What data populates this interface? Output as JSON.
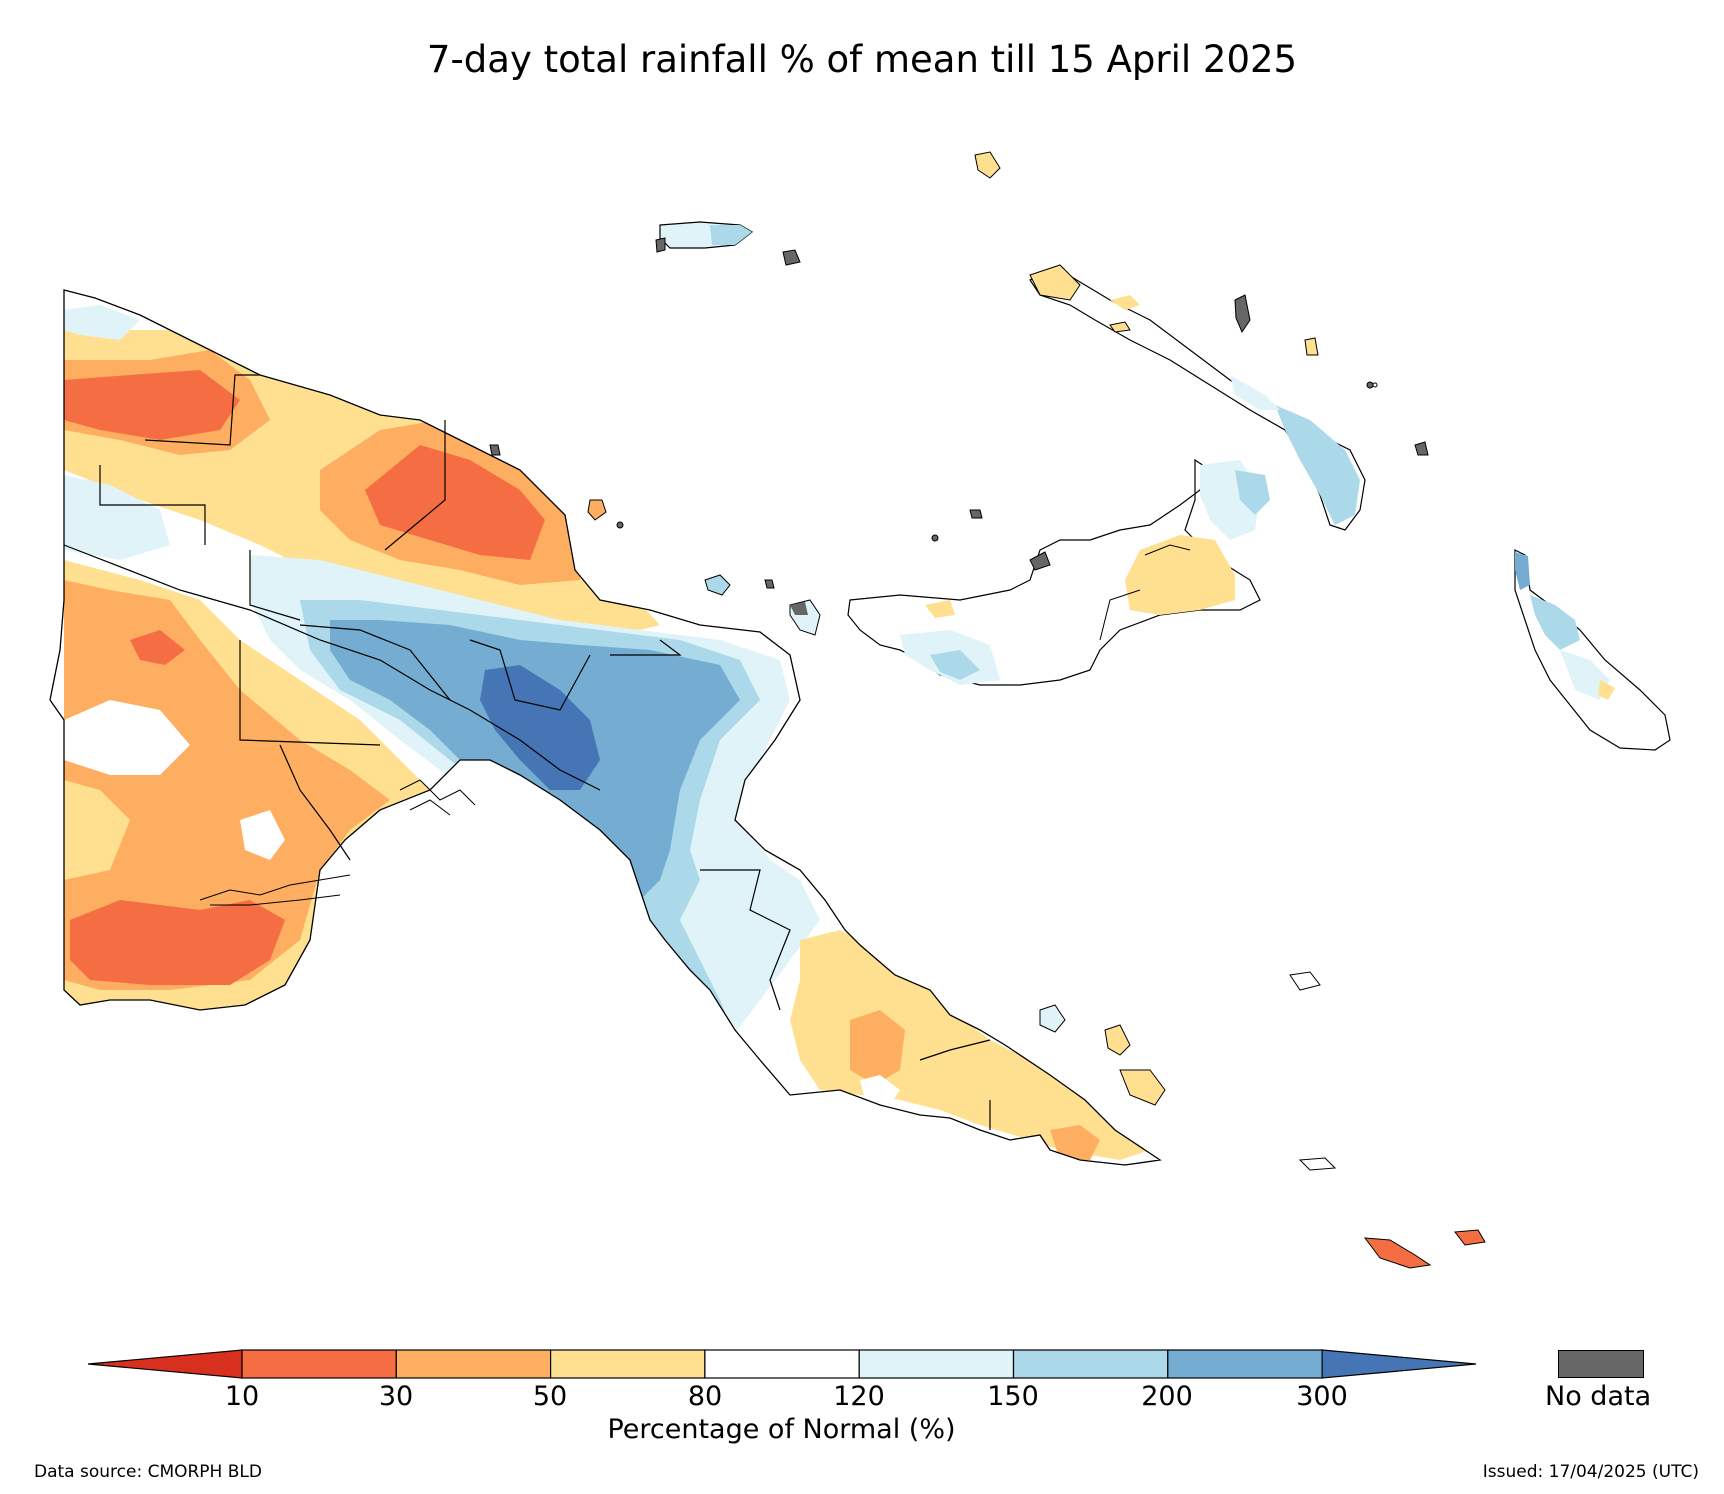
{
  "title": "7-day total rainfall % of mean till 15 April 2025",
  "colorbar": {
    "ticks": [
      "10",
      "30",
      "50",
      "80",
      "120",
      "150",
      "200",
      "300"
    ],
    "bins": [
      {
        "color": "#d7301f"
      },
      {
        "color": "#f46d43"
      },
      {
        "color": "#fdae61"
      },
      {
        "color": "#fee090"
      },
      {
        "color": "#ffffff"
      },
      {
        "color": "#e0f3f8"
      },
      {
        "color": "#abd9e9"
      },
      {
        "color": "#74add1"
      },
      {
        "color": "#4575b4"
      }
    ],
    "label": "Percentage of Normal (%)"
  },
  "nodata": {
    "label": "No data",
    "color": "#666666"
  },
  "footer": {
    "source": "Data source: CMORPH BLD",
    "issued": "Issued: 17/04/2025 (UTC)"
  }
}
